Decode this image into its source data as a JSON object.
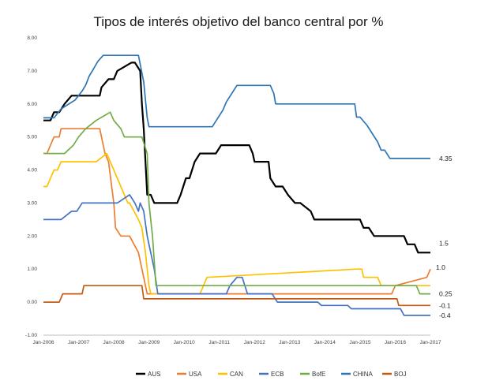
{
  "chart_data": {
    "type": "line",
    "title": "Tipos de interés objetivo del banco central por %",
    "xlabel": "",
    "ylabel": "",
    "ylim": [
      -1.0,
      8.0
    ],
    "yticks": [
      "8.00",
      "7.00",
      "6.00",
      "5.00",
      "4.00",
      "3.00",
      "2.00",
      "1.00",
      "0.00",
      "-1.00"
    ],
    "xlim": [
      2006.0,
      2017.0
    ],
    "xticks": [
      "Jan-2006",
      "Jan-2007",
      "Jan-2008",
      "Jan-2009",
      "Jan-2010",
      "Jan-2011",
      "Jan-2012",
      "Jan-2013",
      "Jan-2014",
      "Jan-2015",
      "Jan-2016",
      "Jan-2017"
    ],
    "grid": false,
    "legend_position": "bottom",
    "series": [
      {
        "name": "AUS",
        "color": "#000000",
        "end_label": "1.5",
        "x": [
          2006.0,
          2006.2,
          2006.3,
          2006.45,
          2006.6,
          2006.8,
          2007.0,
          2007.6,
          2007.65,
          2007.85,
          2008.0,
          2008.1,
          2008.5,
          2008.6,
          2008.75,
          2008.8,
          2008.85,
          2008.9,
          2008.95,
          2009.05,
          2009.15,
          2009.3,
          2009.8,
          2009.9,
          2010.05,
          2010.15,
          2010.3,
          2010.45,
          2010.6,
          2010.9,
          2011.05,
          2011.85,
          2011.95,
          2012.0,
          2012.4,
          2012.45,
          2012.6,
          2012.8,
          2012.95,
          2013.15,
          2013.3,
          2013.6,
          2013.7,
          2014.0,
          2015.0,
          2015.1,
          2015.25,
          2015.4,
          2016.25,
          2016.35,
          2016.55,
          2016.65,
          2017.0
        ],
        "y": [
          5.5,
          5.5,
          5.75,
          5.75,
          6.0,
          6.25,
          6.25,
          6.25,
          6.5,
          6.75,
          6.75,
          7.0,
          7.25,
          7.25,
          7.0,
          6.0,
          5.25,
          4.25,
          3.25,
          3.25,
          3.0,
          3.0,
          3.0,
          3.25,
          3.75,
          3.75,
          4.25,
          4.5,
          4.5,
          4.5,
          4.75,
          4.75,
          4.5,
          4.25,
          4.25,
          3.75,
          3.5,
          3.5,
          3.25,
          3.0,
          3.0,
          2.75,
          2.5,
          2.5,
          2.5,
          2.25,
          2.25,
          2.0,
          2.0,
          1.75,
          1.75,
          1.5,
          1.5
        ]
      },
      {
        "name": "USA",
        "color": "#ED7D31",
        "x": [
          2006.0,
          2006.1,
          2006.2,
          2006.3,
          2006.45,
          2006.5,
          2007.6,
          2007.7,
          2007.75,
          2007.85,
          2008.0,
          2008.05,
          2008.2,
          2008.3,
          2008.45,
          2008.7,
          2008.8,
          2008.95,
          2009.0,
          2015.9,
          2016.0,
          2016.9,
          2017.0
        ],
        "y": [
          4.5,
          4.5,
          4.75,
          5.0,
          5.0,
          5.25,
          5.25,
          4.75,
          4.5,
          4.25,
          3.0,
          2.25,
          2.0,
          2.0,
          2.0,
          1.5,
          1.0,
          0.25,
          0.25,
          0.25,
          0.5,
          0.75,
          1.0
        ]
      },
      {
        "name": "CAN",
        "color": "#FFC000",
        "x": [
          2006.0,
          2006.1,
          2006.2,
          2006.3,
          2006.4,
          2006.5,
          2007.5,
          2007.8,
          2007.9,
          2008.0,
          2008.2,
          2008.4,
          2008.45,
          2008.7,
          2008.8,
          2008.9,
          2008.95,
          2009.0,
          2009.05,
          2009.1,
          2009.15,
          2010.45,
          2010.55,
          2010.65,
          2014.9,
          2015.05,
          2015.1,
          2015.5,
          2015.6,
          2017.0
        ],
        "y": [
          3.5,
          3.5,
          3.75,
          4.0,
          4.0,
          4.25,
          4.25,
          4.5,
          4.25,
          4.0,
          3.5,
          3.0,
          3.0,
          2.5,
          2.25,
          1.5,
          1.0,
          0.5,
          0.25,
          0.25,
          0.25,
          0.25,
          0.5,
          0.75,
          1.0,
          1.0,
          0.75,
          0.75,
          0.5,
          0.5
        ]
      },
      {
        "name": "ECB",
        "color": "#4472C4",
        "end_label": "-0.4",
        "x": [
          2006.0,
          2006.5,
          2006.8,
          2006.95,
          2007.1,
          2007.4,
          2008.1,
          2008.45,
          2008.6,
          2008.7,
          2008.75,
          2008.85,
          2008.95,
          2009.15,
          2009.25,
          2011.2,
          2011.3,
          2011.5,
          2011.65,
          2011.8,
          2012.5,
          2012.65,
          2013.3,
          2013.8,
          2013.9,
          2014.65,
          2014.75,
          2016.15,
          2016.25,
          2017.0
        ],
        "y": [
          2.5,
          2.5,
          2.75,
          2.75,
          3.0,
          3.0,
          3.0,
          3.25,
          3.0,
          2.75,
          3.0,
          2.75,
          2.0,
          1.0,
          0.25,
          0.25,
          0.5,
          0.75,
          0.75,
          0.25,
          0.25,
          0.0,
          0.0,
          0.0,
          -0.1,
          -0.1,
          -0.2,
          -0.2,
          -0.4,
          -0.4
        ]
      },
      {
        "name": "BofE",
        "color": "#70AD47",
        "end_label": "0.25",
        "x": [
          2006.0,
          2006.6,
          2006.85,
          2007.0,
          2007.2,
          2007.5,
          2007.9,
          2008.0,
          2008.2,
          2008.3,
          2008.8,
          2008.95,
          2009.0,
          2009.1,
          2009.2,
          2016.6,
          2016.7,
          2017.0
        ],
        "y": [
          4.5,
          4.5,
          4.75,
          5.0,
          5.25,
          5.5,
          5.75,
          5.5,
          5.25,
          5.0,
          5.0,
          4.5,
          3.0,
          2.0,
          0.5,
          0.5,
          0.25,
          0.25
        ]
      },
      {
        "name": "CHINA",
        "color": "#2E75B6",
        "end_label": "4.35",
        "x": [
          2006.0,
          2006.3,
          2006.5,
          2006.9,
          2007.1,
          2007.2,
          2007.3,
          2007.4,
          2007.55,
          2007.7,
          2007.9,
          2008.7,
          2008.85,
          2008.95,
          2009.0,
          2010.8,
          2010.95,
          2011.1,
          2011.2,
          2011.35,
          2011.5,
          2011.6,
          2012.45,
          2012.55,
          2012.6,
          2014.85,
          2014.9,
          2015.0,
          2015.2,
          2015.35,
          2015.5,
          2015.6,
          2015.7,
          2015.85,
          2016.0,
          2017.0
        ],
        "y": [
          5.58,
          5.58,
          5.85,
          6.12,
          6.39,
          6.57,
          6.84,
          7.02,
          7.29,
          7.47,
          7.47,
          7.47,
          6.66,
          5.58,
          5.31,
          5.31,
          5.56,
          5.81,
          6.06,
          6.31,
          6.56,
          6.56,
          6.56,
          6.31,
          6.0,
          6.0,
          5.6,
          5.6,
          5.35,
          5.1,
          4.85,
          4.6,
          4.6,
          4.35,
          4.35,
          4.35
        ]
      },
      {
        "name": "BOJ",
        "color": "#C55A11",
        "end_label": "-0.1",
        "x": [
          2006.0,
          2006.45,
          2006.55,
          2007.1,
          2007.15,
          2008.8,
          2008.85,
          2016.05,
          2016.1,
          2017.0
        ],
        "y": [
          0.0,
          0.0,
          0.25,
          0.25,
          0.5,
          0.5,
          0.1,
          0.1,
          -0.1,
          -0.1
        ]
      }
    ],
    "usa_end_label": "1.0"
  }
}
